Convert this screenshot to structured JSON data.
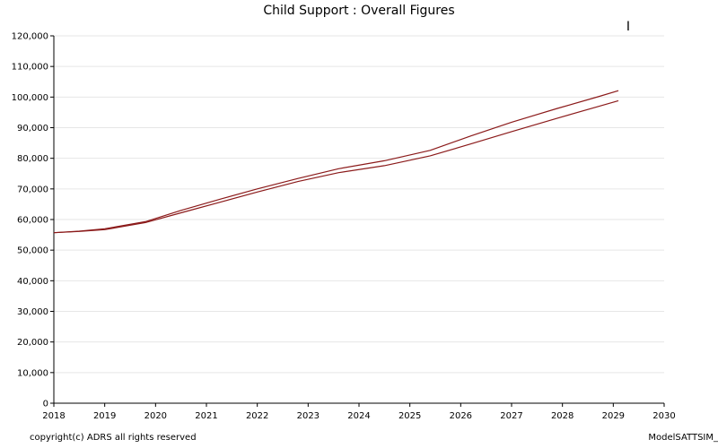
{
  "chart_data": {
    "type": "line",
    "title": "Child Support : Overall Figures",
    "xlabel": "",
    "ylabel": "",
    "xlim": [
      2018,
      2030
    ],
    "ylim": [
      0,
      120000
    ],
    "x_ticks": [
      "2018",
      "2019",
      "2020",
      "2021",
      "2022",
      "2023",
      "2024",
      "2025",
      "2026",
      "2027",
      "2028",
      "2029",
      "2030"
    ],
    "y_ticks": [
      "0",
      "10,000",
      "20,000",
      "30,000",
      "40,000",
      "50,000",
      "60,000",
      "70,000",
      "80,000",
      "90,000",
      "100,000",
      "110,000",
      "120,000"
    ],
    "y_tick_values": [
      0,
      10000,
      20000,
      30000,
      40000,
      50000,
      60000,
      70000,
      80000,
      90000,
      100000,
      110000,
      120000
    ],
    "grid": "horizontal",
    "series": [
      {
        "color": "#8b1a1a",
        "x": [
          2018.0,
          2018.5,
          2019.0,
          2019.8,
          2020.5,
          2021.3,
          2022.0,
          2022.8,
          2023.6,
          2024.5,
          2025.4,
          2026.2,
          2027.0,
          2027.9,
          2028.7,
          2029.1
        ],
        "y": [
          55700,
          56200,
          57000,
          59300,
          63000,
          66800,
          70000,
          73400,
          76600,
          79200,
          82600,
          87300,
          91800,
          96300,
          100100,
          102100
        ]
      },
      {
        "color": "#8b1a1a",
        "x": [
          2018.0,
          2018.5,
          2019.0,
          2019.8,
          2020.5,
          2021.3,
          2022.0,
          2022.8,
          2023.6,
          2024.5,
          2025.4,
          2026.2,
          2027.0,
          2027.9,
          2028.7,
          2029.1
        ],
        "y": [
          55700,
          56100,
          56700,
          59000,
          62200,
          65800,
          69000,
          72400,
          75300,
          77600,
          80800,
          84700,
          88700,
          93100,
          96900,
          98800
        ]
      }
    ],
    "marker_text": "I"
  },
  "footer": {
    "copyright": "copyright(c) ADRS all rights reserved",
    "model": "ModelSATTSIM_"
  }
}
